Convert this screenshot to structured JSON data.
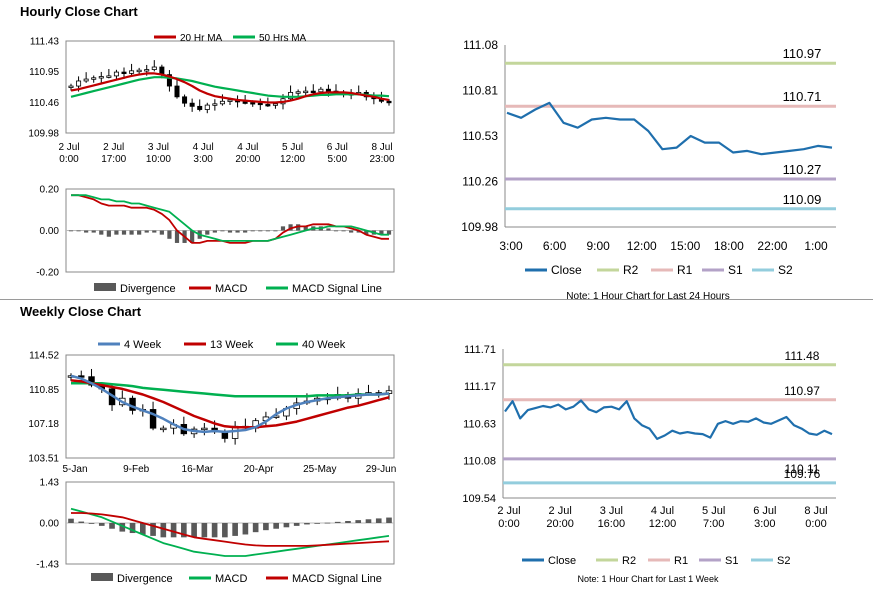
{
  "titles": {
    "hourly": "Hourly Close Chart",
    "weekly": "Weekly Close Chart"
  },
  "colors": {
    "close": "#1f6fad",
    "r2": "#c3d69b",
    "r1": "#e6b9b8",
    "s1": "#b3a2c7",
    "s2": "#93cddd",
    "ma_red": "#c00000",
    "ma_green": "#00b050",
    "ma_blue": "#4f81bd",
    "bar": "#404040",
    "div": "#595959"
  },
  "chart_data": [
    {
      "id": "hourly-candle",
      "type": "candlestick",
      "legend": [
        "20 Hr MA",
        "50 Hrs MA"
      ],
      "yticks": [
        "111.43",
        "110.95",
        "110.46",
        "109.98"
      ],
      "ylim": [
        109.98,
        111.43
      ],
      "xticks": [
        [
          "2 Jul",
          "0:00"
        ],
        [
          "2 Jul",
          "17:00"
        ],
        [
          "3 Jul",
          "10:00"
        ],
        [
          "4 Jul",
          "3:00"
        ],
        [
          "4 Jul",
          "20:00"
        ],
        [
          "5 Jul",
          "12:00"
        ],
        [
          "6 Jul",
          "5:00"
        ],
        [
          "8 Jul",
          "23:00"
        ]
      ],
      "close": [
        110.72,
        110.8,
        110.83,
        110.85,
        110.87,
        110.88,
        110.94,
        110.92,
        110.96,
        110.97,
        110.98,
        111.02,
        110.9,
        110.72,
        110.55,
        110.45,
        110.4,
        110.35,
        110.42,
        110.44,
        110.48,
        110.5,
        110.47,
        110.46,
        110.45,
        110.43,
        110.42,
        110.44,
        110.52,
        110.62,
        110.63,
        110.64,
        110.63,
        110.67,
        110.64,
        110.62,
        110.6,
        110.6,
        110.62,
        110.55,
        110.52,
        110.48,
        110.47
      ],
      "ma20": [
        110.65,
        110.67,
        110.7,
        110.73,
        110.76,
        110.79,
        110.82,
        110.85,
        110.88,
        110.9,
        110.92,
        110.92,
        110.9,
        110.87,
        110.83,
        110.78,
        110.72,
        110.65,
        110.6,
        110.56,
        110.54,
        110.52,
        110.5,
        110.49,
        110.48,
        110.47,
        110.46,
        110.46,
        110.47,
        110.49,
        110.52,
        110.56,
        110.59,
        110.61,
        110.62,
        110.62,
        110.62,
        110.61,
        110.59,
        110.57,
        110.55,
        110.52,
        110.5
      ],
      "ma50": [
        110.55,
        110.58,
        110.61,
        110.64,
        110.67,
        110.7,
        110.73,
        110.76,
        110.79,
        110.82,
        110.84,
        110.86,
        110.86,
        110.85,
        110.84,
        110.82,
        110.8,
        110.77,
        110.74,
        110.71,
        110.69,
        110.67,
        110.65,
        110.63,
        110.61,
        110.59,
        110.57,
        110.56,
        110.55,
        110.55,
        110.55,
        110.56,
        110.57,
        110.58,
        110.58,
        110.59,
        110.59,
        110.59,
        110.59,
        110.58,
        110.57,
        110.57,
        110.56
      ]
    },
    {
      "id": "hourly-macd",
      "type": "macd",
      "legend": [
        "Divergence",
        "MACD",
        "MACD Signal Line"
      ],
      "yticks": [
        "0.20",
        "0.00",
        "-0.20"
      ],
      "ylim": [
        -0.2,
        0.2
      ],
      "macd": [
        0.17,
        0.17,
        0.16,
        0.15,
        0.13,
        0.12,
        0.12,
        0.12,
        0.11,
        0.11,
        0.11,
        0.1,
        0.08,
        0.05,
        0.0,
        -0.03,
        -0.06,
        -0.06,
        -0.05,
        -0.05,
        -0.05,
        -0.06,
        -0.06,
        -0.06,
        -0.05,
        -0.05,
        -0.05,
        -0.04,
        -0.01,
        0.01,
        0.02,
        0.02,
        0.03,
        0.03,
        0.03,
        0.02,
        0.02,
        0.01,
        0.0,
        -0.02,
        -0.03,
        -0.04,
        -0.04
      ],
      "signal": [
        0.17,
        0.17,
        0.17,
        0.16,
        0.15,
        0.15,
        0.14,
        0.14,
        0.13,
        0.13,
        0.12,
        0.11,
        0.1,
        0.09,
        0.06,
        0.03,
        0.0,
        -0.02,
        -0.03,
        -0.04,
        -0.05,
        -0.05,
        -0.05,
        -0.05,
        -0.05,
        -0.05,
        -0.05,
        -0.04,
        -0.03,
        -0.02,
        -0.01,
        0.0,
        0.01,
        0.01,
        0.02,
        0.02,
        0.02,
        0.02,
        0.01,
        0.0,
        -0.01,
        -0.02,
        -0.02
      ],
      "divergence": [
        0.0,
        0.0,
        -0.01,
        -0.01,
        -0.02,
        -0.03,
        -0.02,
        -0.02,
        -0.02,
        -0.02,
        -0.01,
        -0.01,
        -0.02,
        -0.04,
        -0.06,
        -0.06,
        -0.06,
        -0.04,
        -0.02,
        -0.01,
        0.0,
        -0.01,
        -0.01,
        -0.01,
        0.0,
        0.0,
        0.0,
        0.0,
        0.02,
        0.03,
        0.03,
        0.02,
        0.02,
        0.02,
        0.01,
        0.0,
        0.0,
        -0.01,
        -0.01,
        -0.02,
        -0.02,
        -0.02,
        -0.02
      ]
    },
    {
      "id": "hourly-levels",
      "type": "line",
      "yticks": [
        "111.08",
        "110.81",
        "110.53",
        "110.26",
        "109.98"
      ],
      "ylim": [
        109.98,
        111.08
      ],
      "xticks": [
        "3:00",
        "6:00",
        "9:00",
        "12:00",
        "15:00",
        "18:00",
        "22:00",
        "1:00"
      ],
      "close": [
        110.67,
        110.64,
        110.69,
        110.73,
        110.61,
        110.58,
        110.63,
        110.64,
        110.63,
        110.63,
        110.56,
        110.45,
        110.46,
        110.53,
        110.49,
        110.49,
        110.43,
        110.44,
        110.42,
        110.43,
        110.44,
        110.45,
        110.47,
        110.46
      ],
      "levels": [
        {
          "key": "R2",
          "label": "110.97",
          "value": 110.97
        },
        {
          "key": "R1",
          "label": "110.71",
          "value": 110.71
        },
        {
          "key": "S1",
          "label": "110.27",
          "value": 110.27
        },
        {
          "key": "S2",
          "label": "110.09",
          "value": 110.09
        }
      ],
      "legend": [
        "Close",
        "R2",
        "R1",
        "S1",
        "S2"
      ],
      "note": "Note: 1 Hour Chart for Last 24 Hours"
    },
    {
      "id": "weekly-candle",
      "type": "candlestick",
      "legend": [
        "4 Week",
        "13 Week",
        "40 Week"
      ],
      "yticks": [
        "114.52",
        "110.85",
        "107.18",
        "103.51"
      ],
      "ylim": [
        103.51,
        114.52
      ],
      "xticks": [
        "5-Jan",
        "9-Feb",
        "16-Mar",
        "20-Apr",
        "25-May",
        "29-Jun"
      ],
      "close": [
        112.3,
        112.2,
        111.3,
        110.9,
        109.2,
        109.9,
        108.6,
        108.7,
        106.7,
        106.7,
        107.1,
        106.1,
        106.6,
        106.7,
        106.3,
        105.6,
        106.9,
        106.7,
        107.5,
        107.9,
        108.0,
        108.8,
        109.4,
        109.6,
        109.9,
        109.9,
        110.3,
        109.9,
        110.4,
        110.5,
        110.4,
        110.7
      ],
      "wk4": [
        112.3,
        112.0,
        111.5,
        110.9,
        110.2,
        109.5,
        109.0,
        108.6,
        108.2,
        107.7,
        107.1,
        106.6,
        106.4,
        106.3,
        106.4,
        106.3,
        106.4,
        106.5,
        106.8,
        107.4,
        108.2,
        108.8,
        109.2,
        109.5,
        109.7,
        109.9,
        110.0,
        110.1,
        110.2,
        110.3,
        110.3,
        110.4
      ],
      "wk13": [
        111.8,
        111.7,
        111.5,
        111.3,
        111.1,
        110.9,
        110.6,
        110.3,
        109.9,
        109.5,
        109.0,
        108.5,
        108.0,
        107.6,
        107.2,
        106.9,
        106.8,
        106.8,
        106.8,
        106.9,
        107.0,
        107.2,
        107.4,
        107.7,
        108.0,
        108.3,
        108.6,
        108.9,
        109.1,
        109.4,
        109.7,
        110.0
      ],
      "wk40": [
        111.5,
        111.5,
        111.5,
        111.5,
        111.4,
        111.3,
        111.2,
        111.0,
        110.9,
        110.8,
        110.7,
        110.6,
        110.5,
        110.4,
        110.3,
        110.2,
        110.1,
        110.1,
        110.1,
        110.1,
        110.1,
        110.1,
        110.1,
        110.1,
        110.2,
        110.2,
        110.2,
        110.2,
        110.3,
        110.3,
        110.3,
        110.4
      ]
    },
    {
      "id": "weekly-macd",
      "type": "macd",
      "legend": [
        "Divergence",
        "MACD",
        "MACD Signal Line"
      ],
      "yticks": [
        "1.43",
        "0.00",
        "-1.43"
      ],
      "ylim": [
        -1.43,
        1.43
      ],
      "macd": [
        0.5,
        0.4,
        0.3,
        0.2,
        0.05,
        -0.1,
        -0.25,
        -0.4,
        -0.55,
        -0.7,
        -0.8,
        -0.9,
        -1.0,
        -1.05,
        -1.1,
        -1.15,
        -1.15,
        -1.15,
        -1.1,
        -1.05,
        -1.0,
        -0.95,
        -0.9,
        -0.85,
        -0.8,
        -0.75,
        -0.7,
        -0.65,
        -0.6,
        -0.55,
        -0.5,
        -0.45
      ],
      "signal": [
        0.35,
        0.35,
        0.33,
        0.3,
        0.25,
        0.2,
        0.1,
        0.0,
        -0.1,
        -0.2,
        -0.3,
        -0.4,
        -0.5,
        -0.55,
        -0.6,
        -0.65,
        -0.7,
        -0.75,
        -0.78,
        -0.8,
        -0.8,
        -0.8,
        -0.8,
        -0.8,
        -0.78,
        -0.76,
        -0.74,
        -0.72,
        -0.7,
        -0.68,
        -0.66,
        -0.64
      ],
      "divergence": [
        0.15,
        0.05,
        -0.03,
        -0.1,
        -0.2,
        -0.3,
        -0.35,
        -0.4,
        -0.45,
        -0.5,
        -0.5,
        -0.5,
        -0.5,
        -0.5,
        -0.5,
        -0.5,
        -0.45,
        -0.4,
        -0.32,
        -0.25,
        -0.2,
        -0.15,
        -0.1,
        -0.05,
        -0.02,
        0.01,
        0.04,
        0.07,
        0.1,
        0.13,
        0.16,
        0.19
      ]
    },
    {
      "id": "weekly-levels",
      "type": "line",
      "yticks": [
        "111.71",
        "111.17",
        "110.63",
        "110.08",
        "109.54"
      ],
      "ylim": [
        109.54,
        111.71
      ],
      "xticks": [
        [
          "2 Jul",
          "0:00"
        ],
        [
          "2 Jul",
          "20:00"
        ],
        [
          "3 Jul",
          "16:00"
        ],
        [
          "4 Jul",
          "12:00"
        ],
        [
          "5 Jul",
          "7:00"
        ],
        [
          "6 Jul",
          "3:00"
        ],
        [
          "8 Jul",
          "0:00"
        ]
      ],
      "close": [
        110.8,
        110.95,
        110.7,
        110.82,
        110.85,
        110.88,
        110.86,
        110.9,
        110.83,
        110.87,
        110.96,
        110.83,
        110.79,
        110.86,
        110.87,
        110.83,
        110.95,
        110.7,
        110.6,
        110.55,
        110.4,
        110.45,
        110.52,
        110.48,
        110.5,
        110.48,
        110.47,
        110.42,
        110.62,
        110.66,
        110.62,
        110.66,
        110.65,
        110.7,
        110.64,
        110.62,
        110.67,
        110.72,
        110.6,
        110.55,
        110.48,
        110.46,
        110.52,
        110.47
      ],
      "levels": [
        {
          "key": "R2",
          "label": "111.48",
          "value": 111.48
        },
        {
          "key": "R1",
          "label": "110.97",
          "value": 110.97
        },
        {
          "key": "S1",
          "label": "110.11",
          "value": 110.11
        },
        {
          "key": "S2",
          "label": "109.76",
          "value": 109.76
        }
      ],
      "legend": [
        "Close",
        "R2",
        "R1",
        "S1",
        "S2"
      ],
      "note": "Note: 1 Hour Chart for Last 1 Week"
    }
  ]
}
